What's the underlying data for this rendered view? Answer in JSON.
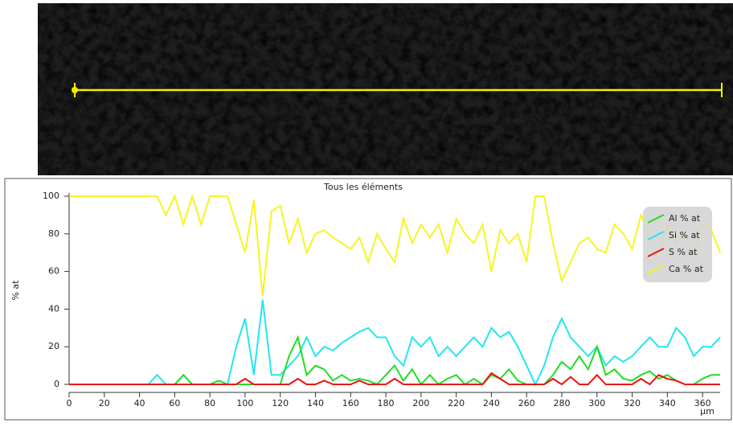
{
  "chart_data": {
    "type": "line",
    "title": "Tous les éléments",
    "y_label": "% at",
    "x_unit": "µm",
    "x": [
      0,
      5,
      10,
      15,
      20,
      25,
      30,
      35,
      40,
      45,
      50,
      55,
      60,
      65,
      70,
      75,
      80,
      85,
      90,
      95,
      100,
      105,
      110,
      115,
      120,
      125,
      130,
      135,
      140,
      145,
      150,
      155,
      160,
      165,
      170,
      175,
      180,
      185,
      190,
      195,
      200,
      205,
      210,
      215,
      220,
      225,
      230,
      235,
      240,
      245,
      250,
      255,
      260,
      265,
      270,
      275,
      280,
      285,
      290,
      295,
      300,
      305,
      310,
      315,
      320,
      325,
      330,
      335,
      340,
      345,
      350,
      355,
      360,
      365,
      370
    ],
    "series": [
      {
        "name": "Al % at",
        "color": "#22dd22",
        "values": [
          0,
          0,
          0,
          0,
          0,
          0,
          0,
          0,
          0,
          0,
          0,
          0,
          0,
          5,
          0,
          0,
          0,
          2,
          0,
          0,
          0,
          0,
          0,
          0,
          0,
          15,
          25,
          5,
          10,
          8,
          2,
          5,
          2,
          3,
          2,
          0,
          5,
          10,
          2,
          8,
          0,
          5,
          0,
          3,
          5,
          0,
          3,
          0,
          5,
          3,
          8,
          2,
          0,
          0,
          0,
          5,
          12,
          8,
          15,
          8,
          20,
          5,
          8,
          3,
          2,
          5,
          7,
          3,
          5,
          2,
          0,
          0,
          3,
          5,
          5
        ]
      },
      {
        "name": "Si % at",
        "color": "#22e6f0",
        "values": [
          0,
          0,
          0,
          0,
          0,
          0,
          0,
          0,
          0,
          0,
          5,
          0,
          0,
          5,
          0,
          0,
          0,
          0,
          0,
          20,
          35,
          5,
          45,
          5,
          5,
          10,
          15,
          25,
          15,
          20,
          18,
          22,
          25,
          28,
          30,
          25,
          25,
          15,
          10,
          25,
          20,
          25,
          15,
          20,
          15,
          20,
          25,
          20,
          30,
          25,
          28,
          20,
          10,
          0,
          10,
          25,
          35,
          25,
          20,
          15,
          20,
          10,
          15,
          12,
          15,
          20,
          25,
          20,
          20,
          30,
          25,
          15,
          20,
          20,
          25
        ]
      },
      {
        "name": "S % at",
        "color": "#ee1111",
        "values": [
          0,
          0,
          0,
          0,
          0,
          0,
          0,
          0,
          0,
          0,
          0,
          0,
          0,
          0,
          0,
          0,
          0,
          0,
          0,
          0,
          3,
          0,
          0,
          0,
          0,
          0,
          3,
          0,
          0,
          2,
          0,
          0,
          0,
          2,
          0,
          0,
          0,
          3,
          0,
          0,
          0,
          0,
          0,
          0,
          0,
          0,
          0,
          0,
          6,
          3,
          0,
          0,
          0,
          0,
          0,
          3,
          0,
          4,
          0,
          0,
          5,
          0,
          0,
          0,
          0,
          3,
          0,
          5,
          3,
          2,
          0,
          0,
          0,
          0,
          0
        ]
      },
      {
        "name": "Ca % at",
        "color": "#f5f522",
        "values": [
          100,
          100,
          100,
          100,
          100,
          100,
          100,
          100,
          100,
          100,
          100,
          90,
          100,
          85,
          100,
          85,
          100,
          100,
          100,
          85,
          70,
          98,
          47,
          92,
          95,
          75,
          88,
          70,
          80,
          82,
          78,
          75,
          72,
          78,
          65,
          80,
          72,
          65,
          88,
          75,
          85,
          78,
          85,
          70,
          88,
          80,
          75,
          85,
          60,
          82,
          75,
          80,
          65,
          100,
          100,
          75,
          55,
          65,
          75,
          78,
          72,
          70,
          85,
          80,
          72,
          90,
          78,
          70,
          85,
          75,
          80,
          70,
          85,
          82,
          70
        ]
      }
    ],
    "xlim": [
      0,
      370
    ],
    "xticks": [
      0,
      20,
      40,
      60,
      80,
      100,
      120,
      140,
      160,
      180,
      200,
      220,
      240,
      260,
      280,
      300,
      320,
      340,
      360
    ],
    "ylim": [
      0,
      100
    ],
    "yticks": [
      0,
      20,
      40,
      60,
      80,
      100
    ]
  }
}
